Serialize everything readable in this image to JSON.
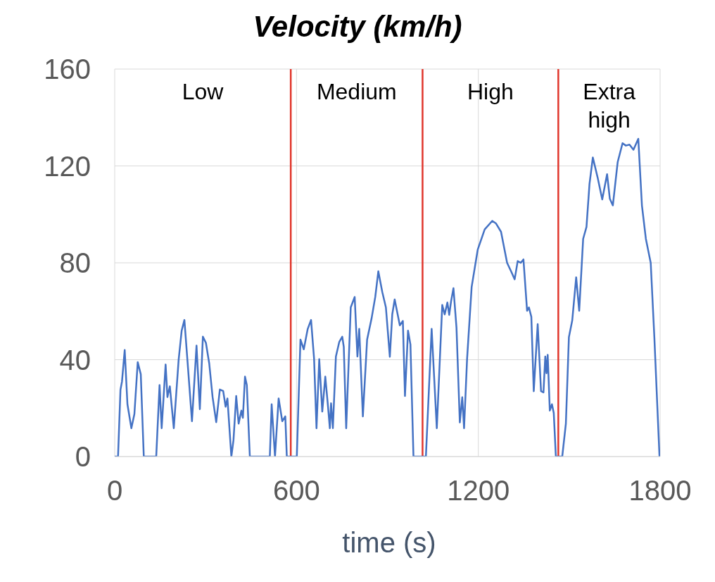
{
  "chart_data": {
    "type": "line",
    "title": "Velocity (km/h)",
    "xlabel": "time (s)",
    "xlim": [
      0,
      1800
    ],
    "xticks": [
      0,
      600,
      1200,
      1800
    ],
    "ylim": [
      0,
      160
    ],
    "yticks": [
      0,
      40,
      80,
      120,
      160
    ],
    "grid": true,
    "series": [
      {
        "color": "#4472c4",
        "x": [
          0,
          11,
          19,
          24,
          33,
          42,
          55,
          65,
          76,
          86,
          96,
          137,
          148,
          155,
          168,
          174,
          182,
          195,
          211,
          221,
          230,
          242,
          255,
          270,
          281,
          291,
          301,
          312,
          323,
          335,
          347,
          358,
          366,
          372,
          385,
          392,
          401,
          409,
          418,
          423,
          430,
          436,
          446,
          512,
          518,
          529,
          541,
          553,
          563,
          568,
          601,
          613,
          624,
          637,
          648,
          658,
          666,
          675,
          685,
          695,
          704,
          710,
          714,
          720,
          730,
          741,
          751,
          756,
          764,
          779,
          792,
          801,
          807,
          819,
          833,
          848,
          860,
          870,
          883,
          895,
          908,
          916,
          924,
          941,
          951,
          958,
          968,
          976,
          986,
          1027,
          1046,
          1063,
          1081,
          1089,
          1098,
          1104,
          1110,
          1118,
          1128,
          1139,
          1147,
          1153,
          1163,
          1178,
          1198,
          1221,
          1246,
          1258,
          1275,
          1295,
          1310,
          1320,
          1330,
          1340,
          1349,
          1361,
          1367,
          1375,
          1383,
          1396,
          1407,
          1415,
          1421,
          1425,
          1429,
          1436,
          1443,
          1449,
          1456,
          1477,
          1489,
          1499,
          1510,
          1523,
          1533,
          1546,
          1557,
          1567,
          1578,
          1594,
          1609,
          1625,
          1634,
          1644,
          1660,
          1676,
          1687,
          1699,
          1712,
          1728,
          1740,
          1753,
          1769,
          1781,
          1798
        ],
        "values": [
          0,
          0,
          27.6,
          31,
          44,
          21.6,
          11.7,
          17.6,
          39,
          34,
          0,
          0,
          29.5,
          11.7,
          38,
          24.6,
          29,
          11.7,
          40,
          52,
          56.4,
          36.5,
          14.6,
          45.8,
          19.6,
          49.5,
          47,
          38.4,
          24.6,
          14.2,
          27.7,
          27.1,
          20.6,
          24,
          0,
          6.8,
          25,
          13.6,
          19,
          16,
          33,
          29.5,
          0,
          0,
          21.6,
          0,
          24,
          14.6,
          16.6,
          0,
          0,
          48.3,
          44.3,
          52.7,
          56.4,
          40.4,
          11.7,
          40.2,
          18.6,
          33,
          20.6,
          11.7,
          22,
          11.7,
          41.3,
          47.3,
          49.5,
          45.3,
          11.7,
          61.6,
          65.9,
          41.3,
          52.7,
          16.6,
          48.3,
          57.2,
          66,
          76.5,
          68,
          61.6,
          41.2,
          58.7,
          64.9,
          54.2,
          56,
          25,
          52,
          46.3,
          0,
          0,
          52.7,
          11.7,
          62.6,
          58.7,
          63.6,
          58.5,
          64,
          69.5,
          53.2,
          14.1,
          24.5,
          11.7,
          40.4,
          70,
          85.4,
          93.8,
          97.3,
          96.3,
          92.8,
          80,
          76,
          73.2,
          80.7,
          80,
          81.4,
          60.2,
          61.6,
          57.7,
          27,
          54.7,
          27,
          26.5,
          41.3,
          34.4,
          42,
          19,
          21.6,
          18,
          0,
          0,
          13.6,
          49.3,
          56.2,
          74,
          60.2,
          89.9,
          94.8,
          112.6,
          123.5,
          115.1,
          106.2,
          116.6,
          106.5,
          103.7,
          121.6,
          129.4,
          128.4,
          128.8,
          126.7,
          131.2,
          103.7,
          89.9,
          80,
          49.3,
          0
        ]
      }
    ],
    "ref_lines": [
      {
        "axis": "x",
        "value": 581,
        "color": "#e0362c"
      },
      {
        "axis": "x",
        "value": 1016,
        "color": "#e0362c"
      },
      {
        "axis": "x",
        "value": 1464,
        "color": "#e0362c"
      }
    ],
    "annotations": [
      "Low",
      "Medium",
      "High",
      "Extra high"
    ]
  }
}
